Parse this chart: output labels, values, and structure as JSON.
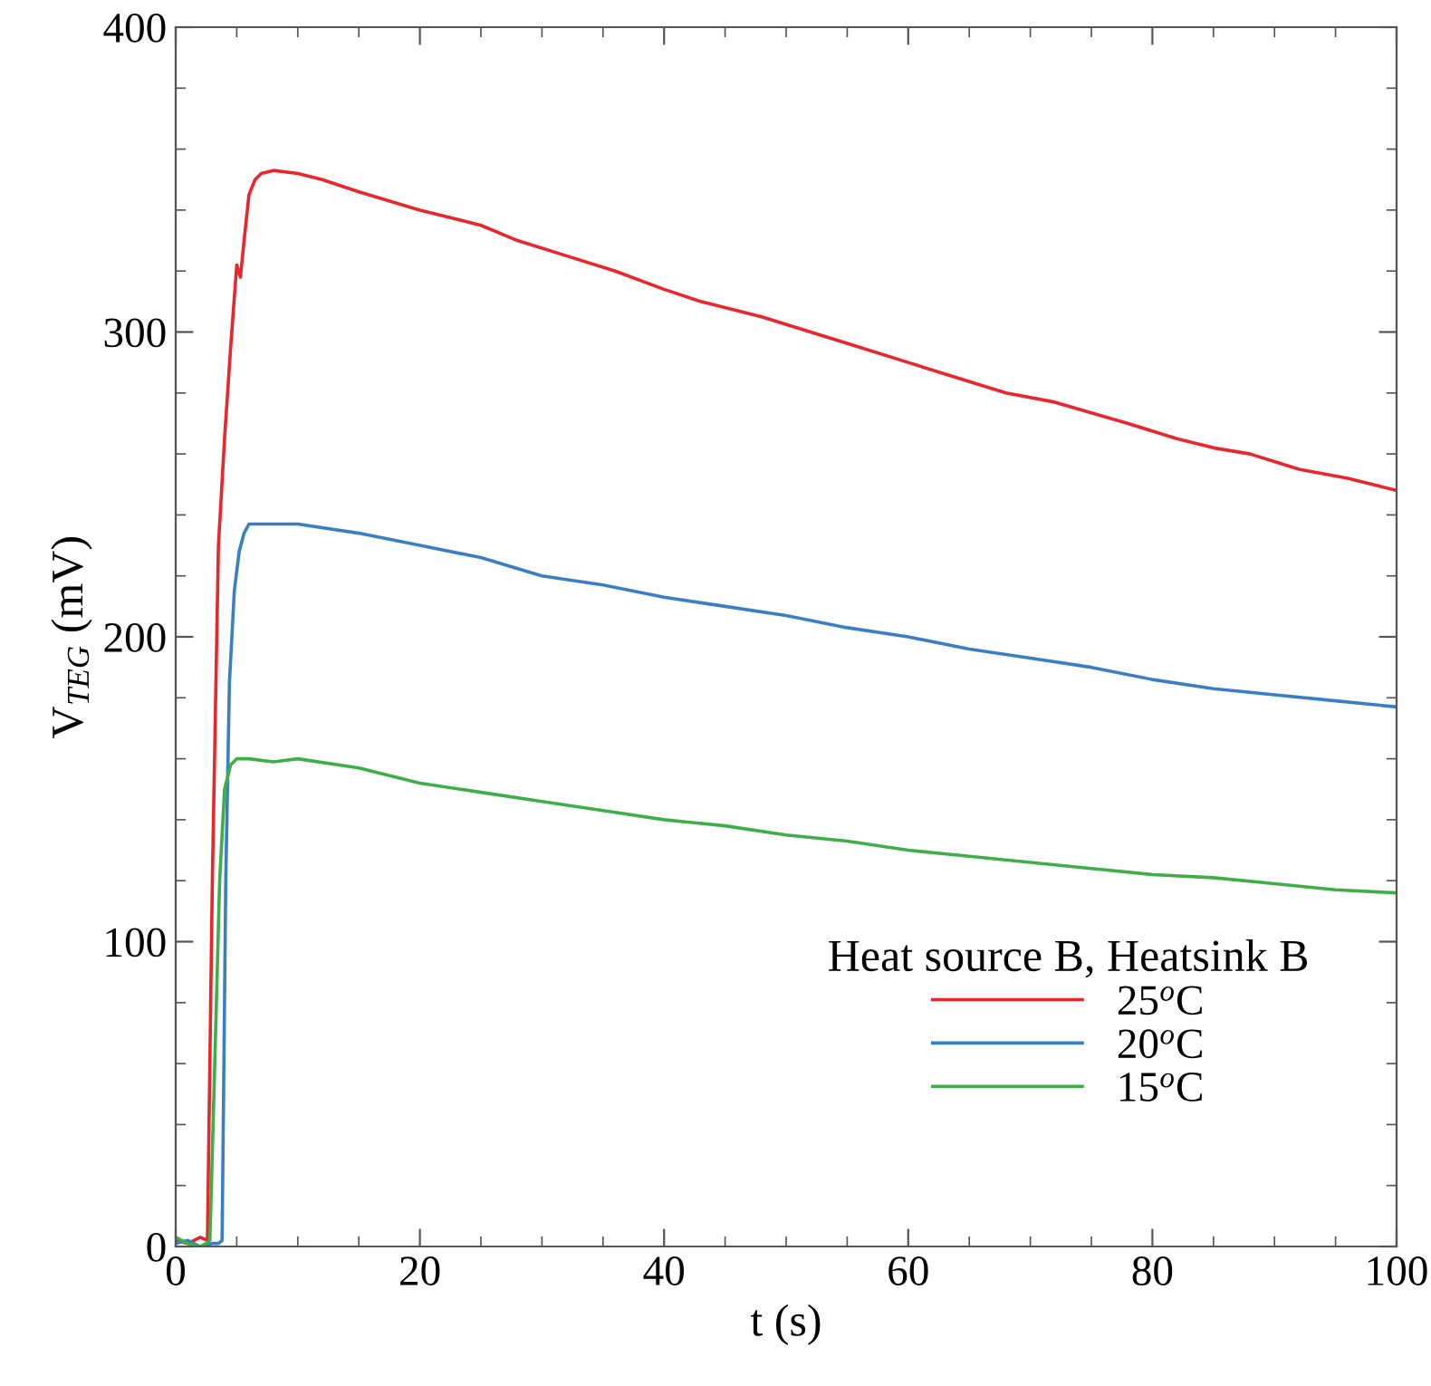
{
  "chart_data": {
    "type": "line",
    "xlabel": "t (s)",
    "ylabel": "V$_{TEG}$ (mV)",
    "legend_title": "Heat source B, Heatsink B",
    "legend": "bottom right",
    "grid": false,
    "marker": "none",
    "line_style": "solid",
    "xlim": [
      0,
      100
    ],
    "ylim": [
      0,
      400
    ],
    "xticks": [
      0,
      {
        "value": 5,
        "label": null
      },
      20,
      {
        "value": 10,
        "label": null
      },
      {
        "value": 15,
        "label": null
      },
      {
        "value": 25,
        "label": null
      },
      {
        "value": 30,
        "label": null
      },
      {
        "value": 35,
        "label": null
      },
      40,
      {
        "value": 45,
        "label": null
      },
      {
        "value": 50,
        "label": null
      },
      {
        "value": 55,
        "label": null
      },
      60,
      {
        "value": 65,
        "label": null
      },
      {
        "value": 70,
        "label": null
      },
      {
        "value": 75,
        "label": null
      },
      80,
      {
        "value": 85,
        "label": null
      },
      {
        "value": 90,
        "label": null
      },
      {
        "value": 95,
        "label": null
      },
      100
    ],
    "yticks": [
      0,
      {
        "value": 20,
        "label": null
      },
      {
        "value": 40,
        "label": null
      },
      {
        "value": 60,
        "label": null
      },
      {
        "value": 80,
        "label": null
      },
      100,
      {
        "value": 120,
        "label": null
      },
      {
        "value": 140,
        "label": null
      },
      {
        "value": 160,
        "label": null
      },
      {
        "value": 180,
        "label": null
      },
      200,
      {
        "value": 220,
        "label": null
      },
      {
        "value": 240,
        "label": null
      },
      {
        "value": 260,
        "label": null
      },
      {
        "value": 280,
        "label": null
      },
      300,
      {
        "value": 320,
        "label": null
      },
      {
        "value": 340,
        "label": null
      },
      {
        "value": 360,
        "label": null
      },
      {
        "value": 380,
        "label": null
      },
      400
    ],
    "series": [
      {
        "name": "25$^{o}$C",
        "color": "#e8262c",
        "x": [
          0,
          1,
          2,
          2.6,
          3,
          3.5,
          4,
          4.5,
          5,
          5.3,
          5.6,
          6,
          6.5,
          7,
          8,
          10,
          12,
          15,
          20,
          25,
          28,
          32,
          36,
          40,
          43,
          48,
          52,
          56,
          60,
          64,
          68,
          72,
          78,
          82,
          85,
          88,
          92,
          96,
          100
        ],
        "values": [
          2,
          1,
          3,
          2,
          120,
          230,
          265,
          295,
          322,
          318,
          330,
          345,
          350,
          352,
          353,
          352,
          350,
          346,
          340,
          335,
          330,
          325,
          320,
          314,
          310,
          305,
          300,
          295,
          290,
          285,
          280,
          277,
          270,
          265,
          262,
          260,
          255,
          252,
          248
        ]
      },
      {
        "name": "20$^{o}$C",
        "color": "#3a7fc2",
        "x": [
          0,
          1,
          2,
          3,
          3.5,
          3.8,
          4.1,
          4.4,
          4.8,
          5.2,
          5.6,
          6,
          8,
          10,
          15,
          20,
          25,
          30,
          35,
          40,
          45,
          50,
          55,
          60,
          65,
          70,
          75,
          80,
          85,
          90,
          95,
          100
        ],
        "values": [
          1,
          2,
          0,
          1,
          1,
          2,
          120,
          185,
          215,
          228,
          234,
          237,
          237,
          237,
          234,
          230,
          226,
          220,
          217,
          213,
          210,
          207,
          203,
          200,
          196,
          193,
          190,
          186,
          183,
          181,
          179,
          177
        ]
      },
      {
        "name": "15$^{o}$C",
        "color": "#3fae49",
        "x": [
          0,
          1,
          2,
          2.5,
          2.8,
          3.2,
          3.6,
          4,
          4.5,
          5,
          6,
          8,
          10,
          15,
          20,
          25,
          30,
          35,
          40,
          45,
          50,
          55,
          60,
          65,
          70,
          75,
          80,
          85,
          90,
          95,
          100
        ],
        "values": [
          3,
          1,
          0,
          1,
          2,
          60,
          120,
          150,
          158,
          160,
          160,
          159,
          160,
          157,
          152,
          149,
          146,
          143,
          140,
          138,
          135,
          133,
          130,
          128,
          126,
          124,
          122,
          121,
          119,
          117,
          116
        ]
      }
    ]
  }
}
